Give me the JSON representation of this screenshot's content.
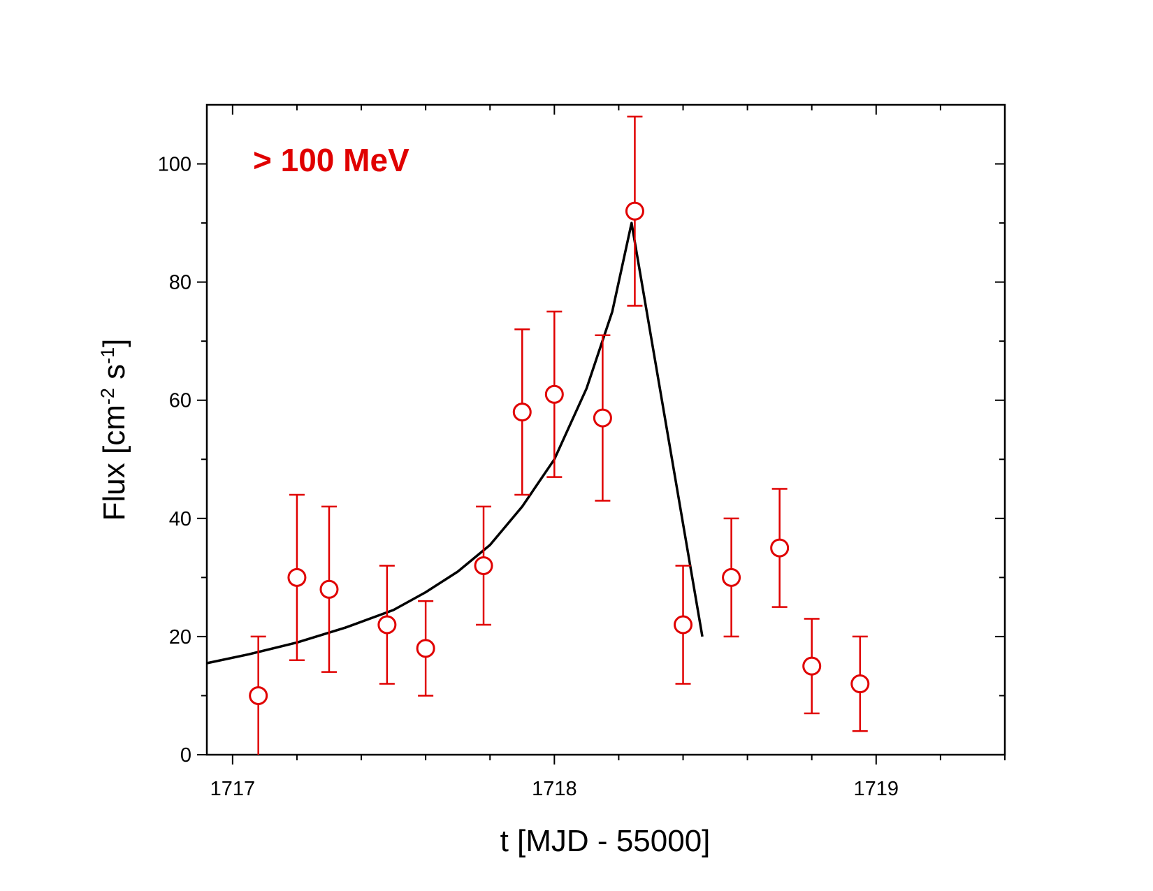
{
  "chart_data": {
    "type": "scatter",
    "title": "",
    "annotation": "> 100 MeV",
    "xlabel": "t [MJD - 55000]",
    "ylabel": {
      "base": "Flux [cm",
      "exp1": "-2",
      "mid": " s",
      "exp2": "-1",
      "end": "]"
    },
    "xlim": [
      1716.92,
      1719.4
    ],
    "ylim": [
      0,
      110
    ],
    "x_major_ticks": [
      1717,
      1718,
      1719
    ],
    "x_minor_ticks": [
      1717.2,
      1717.4,
      1717.6,
      1717.8,
      1718.2,
      1718.4,
      1718.6,
      1718.8,
      1719.2,
      1719.4
    ],
    "y_major_ticks": [
      0,
      20,
      40,
      60,
      80,
      100
    ],
    "y_minor_ticks": [
      10,
      30,
      50,
      70,
      90
    ],
    "x_tick_labels": [
      "1717",
      "1718",
      "1719"
    ],
    "y_tick_labels": [
      "0",
      "20",
      "40",
      "60",
      "80",
      "100"
    ],
    "grid": false,
    "series": [
      {
        "name": "> 100 MeV",
        "marker": "open-circle",
        "color": "#e00000",
        "points": [
          {
            "x": 1717.08,
            "y": 10,
            "err_low": 10,
            "err_high": 10
          },
          {
            "x": 1717.2,
            "y": 30,
            "err_low": 14,
            "err_high": 14
          },
          {
            "x": 1717.3,
            "y": 28,
            "err_low": 14,
            "err_high": 14
          },
          {
            "x": 1717.48,
            "y": 22,
            "err_low": 10,
            "err_high": 10
          },
          {
            "x": 1717.6,
            "y": 18,
            "err_low": 8,
            "err_high": 8
          },
          {
            "x": 1717.78,
            "y": 32,
            "err_low": 10,
            "err_high": 10
          },
          {
            "x": 1717.9,
            "y": 58,
            "err_low": 14,
            "err_high": 14
          },
          {
            "x": 1718.0,
            "y": 61,
            "err_low": 14,
            "err_high": 14
          },
          {
            "x": 1718.15,
            "y": 57,
            "err_low": 14,
            "err_high": 14
          },
          {
            "x": 1718.25,
            "y": 92,
            "err_low": 16,
            "err_high": 16
          },
          {
            "x": 1718.4,
            "y": 22,
            "err_low": 10,
            "err_high": 10
          },
          {
            "x": 1718.55,
            "y": 30,
            "err_low": 10,
            "err_high": 10
          },
          {
            "x": 1718.7,
            "y": 35,
            "err_low": 10,
            "err_high": 10
          },
          {
            "x": 1718.8,
            "y": 15,
            "err_low": 8,
            "err_high": 8
          },
          {
            "x": 1718.95,
            "y": 12,
            "err_low": 8,
            "err_high": 8
          }
        ]
      },
      {
        "name": "fit",
        "marker": "line",
        "color": "#000000",
        "points": [
          {
            "x": 1716.92,
            "y": 15.5
          },
          {
            "x": 1717.05,
            "y": 17
          },
          {
            "x": 1717.2,
            "y": 19
          },
          {
            "x": 1717.35,
            "y": 21.5
          },
          {
            "x": 1717.5,
            "y": 24.5
          },
          {
            "x": 1717.6,
            "y": 27.5
          },
          {
            "x": 1717.7,
            "y": 31
          },
          {
            "x": 1717.8,
            "y": 35.5
          },
          {
            "x": 1717.9,
            "y": 42
          },
          {
            "x": 1718.0,
            "y": 50
          },
          {
            "x": 1718.1,
            "y": 62
          },
          {
            "x": 1718.18,
            "y": 75
          },
          {
            "x": 1718.24,
            "y": 90
          },
          {
            "x": 1718.46,
            "y": 20
          }
        ]
      }
    ]
  }
}
